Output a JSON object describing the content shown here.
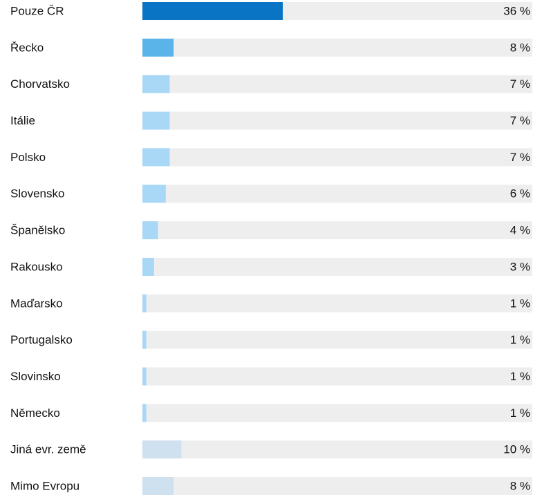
{
  "chart_data": {
    "type": "bar",
    "categories": [
      "Pouze ČR",
      "Řecko",
      "Chorvatsko",
      "Itálie",
      "Polsko",
      "Slovensko",
      "Španělsko",
      "Rakousko",
      "Maďarsko",
      "Portugalsko",
      "Slovinsko",
      "Německo",
      "Jiná evr. země",
      "Mimo Evropu"
    ],
    "values": [
      36,
      8,
      7,
      7,
      7,
      6,
      4,
      3,
      1,
      1,
      1,
      1,
      10,
      8
    ],
    "value_labels": [
      "36 %",
      "8 %",
      "7 %",
      "7 %",
      "7 %",
      "6 %",
      "4 %",
      "3 %",
      "1 %",
      "1 %",
      "1 %",
      "1 %",
      "10 %",
      "8 %"
    ],
    "colors": [
      "#0a74c4",
      "#5ab4ea",
      "#a9d8f6",
      "#a9d8f6",
      "#a9d8f6",
      "#a9d8f6",
      "#a9d8f6",
      "#a9d8f6",
      "#a9d8f6",
      "#a9d8f6",
      "#a9d8f6",
      "#a9d8f6",
      "#cfe0ef",
      "#cfe0ef"
    ],
    "track_color": "#eeeeee",
    "xlim": [
      0,
      100
    ]
  }
}
